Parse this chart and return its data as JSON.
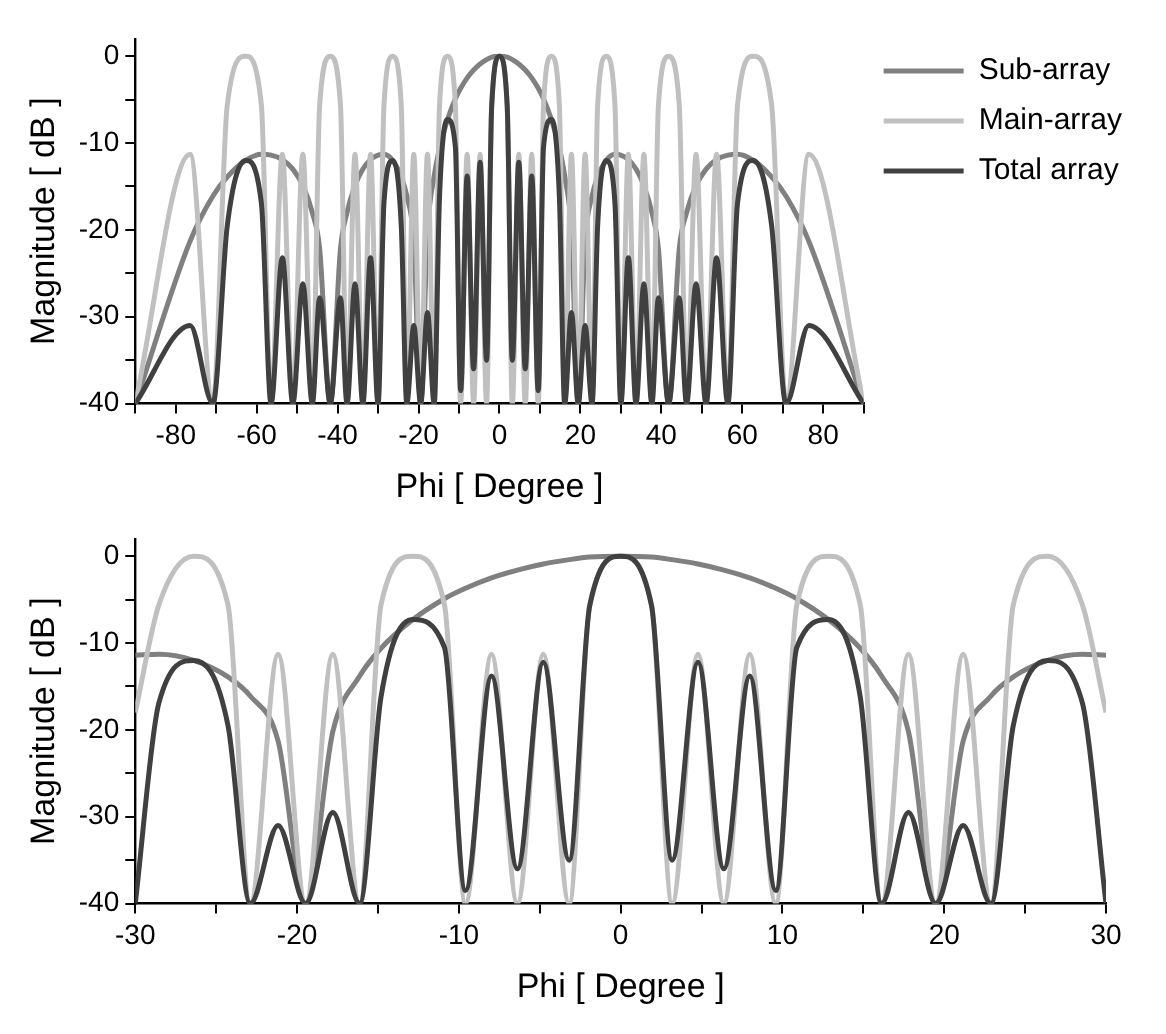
{
  "chart_data": [
    {
      "type": "line",
      "xlabel": "Phi [ Degree ]",
      "ylabel": "Magnitude [ dB ]",
      "xlim": [
        -90,
        90
      ],
      "ylim": [
        -40,
        2
      ],
      "marker": "none",
      "legend": "top right",
      "xticks": [
        {
          "value": -90,
          "label": null
        },
        -80,
        {
          "value": -70,
          "label": null
        },
        -60,
        {
          "value": -50,
          "label": null
        },
        -40,
        {
          "value": -30,
          "label": null
        },
        -20,
        {
          "value": -10,
          "label": null
        },
        0,
        {
          "value": 10,
          "label": null
        },
        20,
        {
          "value": 30,
          "label": null
        },
        40,
        {
          "value": 50,
          "label": null
        },
        60,
        {
          "value": 70,
          "label": null
        },
        80,
        {
          "value": 90,
          "label": null
        }
      ],
      "yticks": [
        -40,
        {
          "value": -35,
          "label": null
        },
        -30,
        {
          "value": -25,
          "label": null
        },
        -20,
        {
          "value": -15,
          "label": null
        },
        -10,
        {
          "value": -5,
          "label": null
        },
        0
      ],
      "x": [
        -90,
        -76.45,
        -70.81,
        -67.26,
        -62.73,
        -58.84,
        -56.44,
        -53.66,
        -51.06,
        -48.59,
        -46.24,
        -44.43,
        -41.81,
        -39.29,
        -37.67,
        -35.69,
        -33.75,
        -31.86,
        -30,
        -28.54,
        -26.39,
        -24.27,
        -22.89,
        -21.17,
        -19.47,
        -17.79,
        -16.13,
        -14.81,
        -12.84,
        -10.89,
        -9.59,
        -7.98,
        -6.38,
        -4.78,
        -3.18,
        -1.91,
        0,
        1.91,
        3.18,
        4.78,
        6.38,
        7.98,
        9.59,
        10.89,
        12.84,
        14.81,
        16.13,
        17.79,
        19.47,
        21.17,
        22.89,
        24.27,
        26.39,
        28.54,
        30,
        31.86,
        33.75,
        35.69,
        37.67,
        39.29,
        41.81,
        44.43,
        46.24,
        48.59,
        51.06,
        53.66,
        56.44,
        58.84,
        62.73,
        67.26,
        70.81,
        76.45,
        90
      ],
      "series": [
        {
          "name": "Sub-array",
          "color": "#808080",
          "values": [
            -40,
            -21.3,
            -16.1,
            -13.9,
            -12.0,
            -11.3,
            -11.4,
            -11.9,
            -13.0,
            -14.9,
            -18.0,
            -22.2,
            -40,
            -22.2,
            -18.0,
            -14.9,
            -13.0,
            -11.9,
            -11.4,
            -11.3,
            -12.0,
            -13.9,
            -16.1,
            -21.3,
            -40,
            -20.2,
            -13.8,
            -10.6,
            -7.3,
            -4.9,
            -3.7,
            -2.5,
            -1.6,
            -0.9,
            -0.4,
            -0.1,
            0,
            -0.1,
            -0.4,
            -0.9,
            -1.6,
            -2.5,
            -3.7,
            -4.9,
            -7.3,
            -10.6,
            -13.8,
            -20.2,
            -40,
            -21.3,
            -16.1,
            -13.9,
            -12.0,
            -11.3,
            -11.4,
            -11.9,
            -13.0,
            -14.9,
            -18.0,
            -22.2,
            -40,
            -22.2,
            -18.0,
            -14.9,
            -13.0,
            -11.9,
            -11.4,
            -11.3,
            -12.0,
            -13.9,
            -16.1,
            -21.3,
            -40
          ]
        },
        {
          "name": "Main-array",
          "color": "#c0c0c0",
          "values": [
            -40,
            -11.3,
            -40,
            -5.6,
            0,
            -5.6,
            -40,
            -11.3,
            -40,
            -11.3,
            -40,
            -5.6,
            0,
            -5.6,
            -40,
            -11.3,
            -40,
            -11.3,
            -40,
            -5.6,
            0,
            -5.6,
            -40,
            -11.3,
            -40,
            -11.3,
            -40,
            -5.6,
            0,
            -5.6,
            -40,
            -11.3,
            -40,
            -11.3,
            -40,
            -5.6,
            0,
            -5.6,
            -40,
            -11.3,
            -40,
            -11.3,
            -40,
            -5.6,
            0,
            -5.6,
            -40,
            -11.3,
            -40,
            -11.3,
            -40,
            -5.6,
            0,
            -5.6,
            -40,
            -11.3,
            -40,
            -11.3,
            -40,
            -5.6,
            0,
            -5.6,
            -40,
            -11.3,
            -40,
            -11.3,
            -40,
            -5.6,
            0,
            -5.6,
            -40,
            -11.3,
            -40
          ]
        },
        {
          "name": "Total array",
          "color": "#404040",
          "values": [
            -40,
            -31,
            -40,
            -19.5,
            -12.0,
            -16.9,
            -40,
            -23.2,
            -40,
            -26.2,
            -40,
            -27.8,
            -40,
            -27.8,
            -40,
            -26.2,
            -40,
            -23.2,
            -40,
            -16.9,
            -12.0,
            -19.5,
            -40,
            -31,
            -40,
            -29.5,
            -40,
            -16.2,
            -7.3,
            -10.5,
            -38.5,
            -13.8,
            -36,
            -12.2,
            -35,
            -5.7,
            0,
            -5.7,
            -35,
            -12.2,
            -36,
            -13.8,
            -38.5,
            -10.5,
            -7.3,
            -16.2,
            -40,
            -29.5,
            -40,
            -31,
            -40,
            -19.5,
            -12.0,
            -16.9,
            -40,
            -23.2,
            -40,
            -26.2,
            -40,
            -27.8,
            -40,
            -27.8,
            -40,
            -26.2,
            -40,
            -23.2,
            -40,
            -16.9,
            -12.0,
            -19.5,
            -40,
            -31,
            -40
          ]
        }
      ]
    },
    {
      "type": "line",
      "xlabel": "Phi [ Degree ]",
      "ylabel": "Magnitude [ dB ]",
      "xlim": [
        -30,
        30
      ],
      "ylim": [
        -40,
        2
      ],
      "marker": "none",
      "xticks": [
        -30,
        {
          "value": -25,
          "label": null
        },
        -20,
        {
          "value": -15,
          "label": null
        },
        -10,
        {
          "value": -5,
          "label": null
        },
        0,
        {
          "value": 5,
          "label": null
        },
        10,
        {
          "value": 15,
          "label": null
        },
        20,
        {
          "value": 25,
          "label": null
        },
        30
      ],
      "yticks": [
        -40,
        {
          "value": -35,
          "label": null
        },
        -30,
        {
          "value": -25,
          "label": null
        },
        -20,
        {
          "value": -15,
          "label": null
        },
        -10,
        {
          "value": -5,
          "label": null
        },
        0
      ],
      "x": [
        -30,
        -28.54,
        -26.39,
        -24.27,
        -22.89,
        -21.17,
        -19.47,
        -17.79,
        -16.13,
        -14.81,
        -12.84,
        -10.89,
        -9.59,
        -7.98,
        -6.38,
        -4.78,
        -3.18,
        -1.91,
        0,
        1.91,
        3.18,
        4.78,
        6.38,
        7.98,
        9.59,
        10.89,
        12.84,
        14.81,
        16.13,
        17.79,
        19.47,
        21.17,
        22.89,
        24.27,
        26.39,
        28.54,
        30
      ],
      "series": [
        {
          "color": "#808080",
          "values": [
            -11.4,
            -11.3,
            -12.0,
            -13.9,
            -16.1,
            -21.3,
            -40,
            -20.2,
            -13.8,
            -10.6,
            -7.3,
            -4.9,
            -3.7,
            -2.5,
            -1.6,
            -0.9,
            -0.4,
            -0.1,
            0,
            -0.1,
            -0.4,
            -0.9,
            -1.6,
            -2.5,
            -3.7,
            -4.9,
            -7.3,
            -10.6,
            -13.8,
            -20.2,
            -40,
            -21.3,
            -16.1,
            -13.9,
            -12.0,
            -11.3,
            -11.4
          ]
        },
        {
          "color": "#c0c0c0",
          "values": [
            -18,
            -5.6,
            0,
            -5.6,
            -40,
            -11.3,
            -40,
            -11.3,
            -40,
            -5.6,
            0,
            -5.6,
            -40,
            -11.3,
            -40,
            -11.3,
            -40,
            -5.6,
            0,
            -5.6,
            -40,
            -11.3,
            -40,
            -11.3,
            -40,
            -5.6,
            0,
            -5.6,
            -40,
            -11.3,
            -40,
            -11.3,
            -40,
            -5.6,
            0,
            -5.6,
            -18
          ]
        },
        {
          "color": "#404040",
          "values": [
            -40,
            -16.9,
            -12.0,
            -19.5,
            -40,
            -31,
            -40,
            -29.5,
            -40,
            -16.2,
            -7.3,
            -10.5,
            -38.5,
            -13.8,
            -36,
            -12.2,
            -35,
            -5.7,
            0,
            -5.7,
            -35,
            -12.2,
            -36,
            -13.8,
            -38.5,
            -10.5,
            -7.3,
            -16.2,
            -40,
            -29.5,
            -40,
            -31,
            -40,
            -19.5,
            -12.0,
            -16.9,
            -40
          ]
        }
      ]
    }
  ]
}
